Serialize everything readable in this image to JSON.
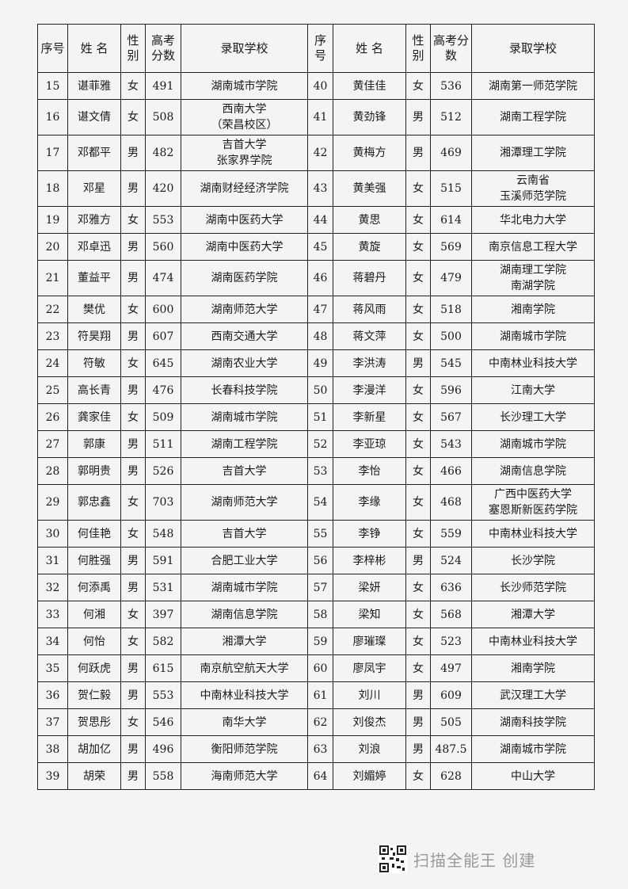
{
  "table": {
    "header": [
      "序号",
      "姓 名",
      "性别",
      "高考分数",
      "录取学校",
      "序号",
      "姓 名",
      "性别",
      "高考分数",
      "录取学校"
    ],
    "rows": [
      [
        15,
        "谌菲雅",
        "女",
        491,
        "湖南城市学院",
        40,
        "黄佳佳",
        "女",
        536,
        "湖南第一师范学院"
      ],
      [
        16,
        "谌文倩",
        "女",
        508,
        "西南大学\n（荣昌校区）",
        41,
        "黄劲锋",
        "男",
        512,
        "湖南工程学院"
      ],
      [
        17,
        "邓都平",
        "男",
        482,
        "吉首大学\n张家界学院",
        42,
        "黄梅方",
        "男",
        469,
        "湘潭理工学院"
      ],
      [
        18,
        "邓星",
        "男",
        420,
        "湖南财经经济学院",
        43,
        "黄美强",
        "女",
        515,
        "云南省\n玉溪师范学院"
      ],
      [
        19,
        "邓雅方",
        "女",
        553,
        "湖南中医药大学",
        44,
        "黄思",
        "女",
        614,
        "华北电力大学"
      ],
      [
        20,
        "邓卓迅",
        "男",
        560,
        "湖南中医药大学",
        45,
        "黄旋",
        "女",
        569,
        "南京信息工程大学"
      ],
      [
        21,
        "董益平",
        "男",
        474,
        "湖南医药学院",
        46,
        "蒋碧丹",
        "女",
        479,
        "湖南理工学院\n南湖学院"
      ],
      [
        22,
        "樊优",
        "女",
        600,
        "湖南师范大学",
        47,
        "蒋风雨",
        "女",
        518,
        "湘南学院"
      ],
      [
        23,
        "符昊翔",
        "男",
        607,
        "西南交通大学",
        48,
        "蒋文萍",
        "女",
        500,
        "湖南城市学院"
      ],
      [
        24,
        "符敏",
        "女",
        645,
        "湖南农业大学",
        49,
        "李洪涛",
        "男",
        545,
        "中南林业科技大学"
      ],
      [
        25,
        "高长青",
        "男",
        476,
        "长春科技学院",
        50,
        "李漫洋",
        "女",
        596,
        "江南大学"
      ],
      [
        26,
        "龚家佳",
        "女",
        509,
        "湖南城市学院",
        51,
        "李新星",
        "女",
        567,
        "长沙理工大学"
      ],
      [
        27,
        "郭康",
        "男",
        511,
        "湖南工程学院",
        52,
        "李亚琼",
        "女",
        543,
        "湖南城市学院"
      ],
      [
        28,
        "郭明贵",
        "男",
        526,
        "吉首大学",
        53,
        "李怡",
        "女",
        466,
        "湖南信息学院"
      ],
      [
        29,
        "郭忠鑫",
        "女",
        703,
        "湖南师范大学",
        54,
        "李缘",
        "女",
        468,
        "广西中医药大学\n塞恩斯新医药学院"
      ],
      [
        30,
        "何佳艳",
        "女",
        548,
        "吉首大学",
        55,
        "李铮",
        "女",
        559,
        "中南林业科技大学"
      ],
      [
        31,
        "何胜强",
        "男",
        591,
        "合肥工业大学",
        56,
        "李梓彬",
        "男",
        524,
        "长沙学院"
      ],
      [
        32,
        "何添禹",
        "男",
        531,
        "湖南城市学院",
        57,
        "梁妍",
        "女",
        636,
        "长沙师范学院"
      ],
      [
        33,
        "何湘",
        "女",
        397,
        "湖南信息学院",
        58,
        "梁知",
        "女",
        568,
        "湘潭大学"
      ],
      [
        34,
        "何怡",
        "女",
        582,
        "湘潭大学",
        59,
        "廖璀璨",
        "女",
        523,
        "中南林业科技大学"
      ],
      [
        35,
        "何跃虎",
        "男",
        615,
        "南京航空航天大学",
        60,
        "廖凤宇",
        "女",
        497,
        "湘南学院"
      ],
      [
        36,
        "贺仁毅",
        "男",
        553,
        "中南林业科技大学",
        61,
        "刘川",
        "男",
        609,
        "武汉理工大学"
      ],
      [
        37,
        "贺思彤",
        "女",
        546,
        "南华大学",
        62,
        "刘俊杰",
        "男",
        505,
        "湖南科技学院"
      ],
      [
        38,
        "胡加亿",
        "男",
        496,
        "衡阳师范学院",
        63,
        "刘浪",
        "男",
        487.5,
        "湖南城市学院"
      ],
      [
        39,
        "胡荣",
        "男",
        558,
        "海南师范大学",
        64,
        "刘媚婷",
        "女",
        628,
        "中山大学"
      ]
    ]
  },
  "footer": {
    "text": "扫描全能王 创建"
  }
}
